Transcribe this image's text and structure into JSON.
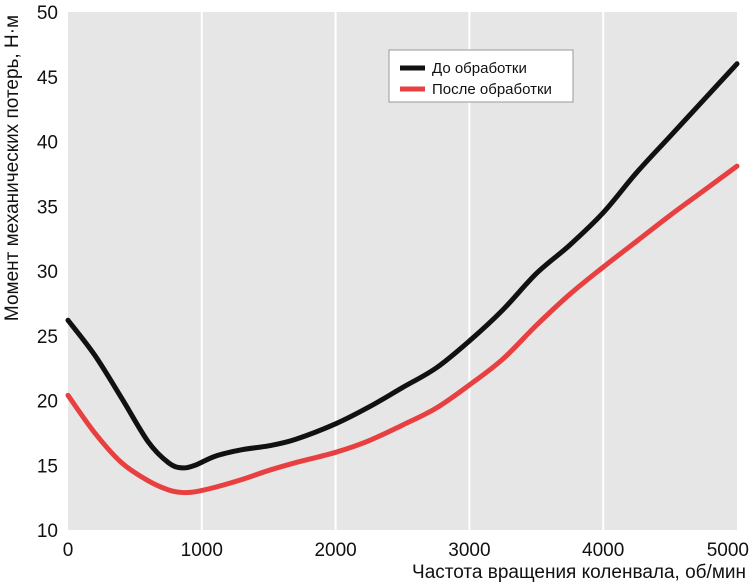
{
  "chart_data": {
    "type": "line",
    "title": "",
    "xlabel": "Частота вращения коленвала, об/мин",
    "ylabel": "Момент механических потерь, Н·м",
    "xlim": [
      0,
      5000
    ],
    "ylim": [
      10,
      50
    ],
    "xticks": [
      0,
      1000,
      2000,
      3000,
      4000,
      5000
    ],
    "yticks": [
      10,
      15,
      20,
      25,
      30,
      35,
      40,
      45,
      50
    ],
    "grid": "vertical",
    "background": "#e6e6e6",
    "legend_position": "top-right",
    "series": [
      {
        "name": "До обработки",
        "color": "#111111",
        "x": [
          0,
          200,
          400,
          600,
          750,
          850,
          950,
          1100,
          1300,
          1500,
          1700,
          2000,
          2250,
          2500,
          2750,
          3000,
          3250,
          3500,
          3750,
          4000,
          4250,
          4500,
          4750,
          5000
        ],
        "y": [
          26.2,
          23.5,
          20.2,
          16.8,
          15.2,
          14.8,
          15.0,
          15.7,
          16.2,
          16.5,
          17.0,
          18.2,
          19.5,
          21.0,
          22.5,
          24.6,
          27.0,
          29.8,
          32.0,
          34.5,
          37.6,
          40.4,
          43.2,
          46.0
        ]
      },
      {
        "name": "После обработки",
        "color": "#e84040",
        "x": [
          0,
          200,
          400,
          600,
          750,
          850,
          950,
          1100,
          1300,
          1500,
          1700,
          2000,
          2250,
          2500,
          2750,
          3000,
          3250,
          3500,
          3750,
          4000,
          4250,
          4500,
          4750,
          5000
        ],
        "y": [
          20.4,
          17.5,
          15.2,
          13.8,
          13.1,
          12.9,
          12.95,
          13.3,
          13.9,
          14.6,
          15.2,
          16.0,
          16.9,
          18.1,
          19.4,
          21.2,
          23.2,
          25.8,
          28.2,
          30.3,
          32.3,
          34.3,
          36.2,
          38.1
        ]
      }
    ]
  }
}
